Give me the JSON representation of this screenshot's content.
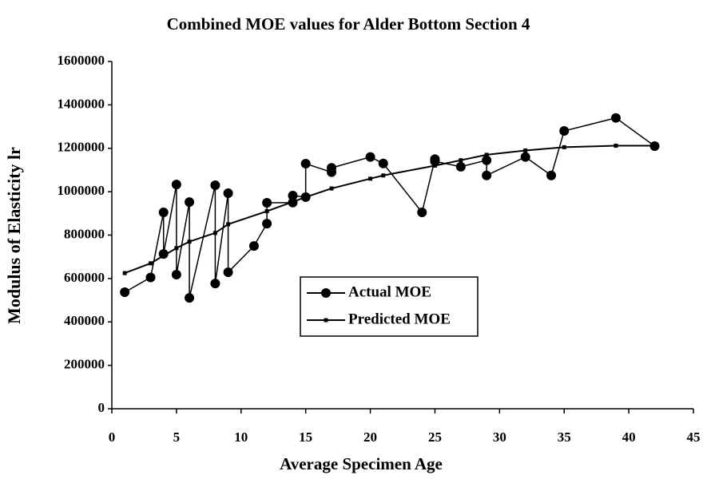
{
  "chart_data": {
    "type": "line",
    "title": "Combined MOE values for Alder Bottom Section 4",
    "x_label": "Average Specimen Age",
    "y_label": "Modulus of Elasticity lr",
    "xlim": [
      0,
      45
    ],
    "xticks": [
      0,
      5,
      10,
      15,
      20,
      25,
      30,
      35,
      40,
      45
    ],
    "ylim": [
      0,
      1600000
    ],
    "yticks": [
      0,
      200000,
      400000,
      600000,
      800000,
      1000000,
      1200000,
      1400000,
      1600000
    ],
    "grid": false,
    "legend": "center",
    "series": [
      {
        "name": "Actual MOE",
        "color": "#000000",
        "marker": "circle",
        "x": [
          1,
          3,
          4,
          4,
          5,
          5,
          6,
          6,
          8,
          8,
          9,
          9,
          11,
          12,
          12,
          14,
          14,
          15,
          15,
          17,
          17,
          20,
          21,
          24,
          25,
          25,
          27,
          29,
          29,
          32,
          34,
          35,
          39,
          42
        ],
        "values": [
          537000,
          605000,
          905000,
          713000,
          1033000,
          618000,
          952000,
          511000,
          1030000,
          577000,
          993000,
          629000,
          750000,
          853000,
          949000,
          950000,
          982000,
          975000,
          1129000,
          1090000,
          1110000,
          1160000,
          1130000,
          905000,
          1150000,
          1140000,
          1115000,
          1145000,
          1075000,
          1160000,
          1075000,
          1280000,
          1340000,
          1210000
        ]
      },
      {
        "name": "Predicted MOE",
        "color": "#000000",
        "marker": "square",
        "x": [
          1,
          3,
          5,
          6,
          8,
          9,
          12,
          15,
          17,
          20,
          21,
          25,
          27,
          29,
          32,
          35,
          39,
          42
        ],
        "values": [
          625000,
          670000,
          740000,
          770000,
          810000,
          850000,
          910000,
          975000,
          1015000,
          1060000,
          1075000,
          1120000,
          1145000,
          1170000,
          1190000,
          1205000,
          1212000,
          1212000
        ]
      }
    ]
  }
}
